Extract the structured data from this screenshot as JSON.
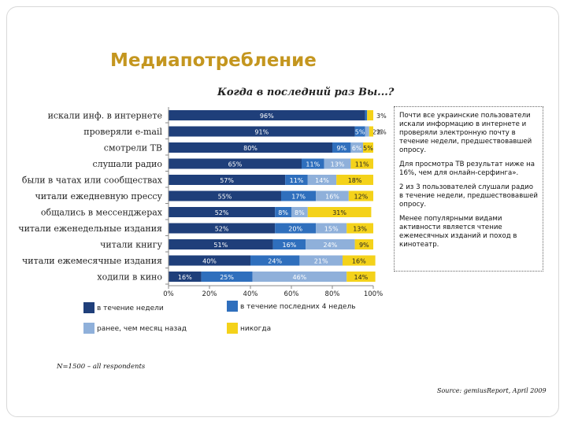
{
  "page": {
    "title": "Медиапотребление",
    "subtitle": "Когда в последний раз Вы...?",
    "sample_note": "N=1500 – all respondents",
    "source": "Source: gemiusReport, April 2009",
    "notes": [
      "Почти все украинские пользователи искали информацию в интернете и проверяли электронную почту в течение недели, предшествовавшей опросу.",
      "Для просмотра ТВ результат ниже на 16%, чем для онлайн-серфинга».",
      "2 из 3 пользователей слушали радио в течение недели, предшествовавшей опросу.",
      "Менее популярными видами активности является чтение ежемесячных изданий и поход в кинотеатр."
    ]
  },
  "chart_data": {
    "type": "bar",
    "orientation": "horizontal",
    "stacked": true,
    "title": "Когда в последний раз Вы...?",
    "categories": [
      "искали инф. в интернете",
      "проверяли e-mail",
      "смотрели ТВ",
      "слушали радио",
      "были в чатах или сообществах",
      "читали ежедневную прессу",
      "общались в мессенджерах",
      "читали еженедельные издания",
      "читали книгу",
      "читали ежемесячные издания",
      "ходили в кино"
    ],
    "series": [
      {
        "name": "в течение недели",
        "color": "#1f3f7a",
        "values": [
          96,
          91,
          80,
          65,
          57,
          55,
          52,
          52,
          51,
          40,
          16
        ]
      },
      {
        "name": "в течение последних 4 недель",
        "color": "#2f6fbd",
        "values": [
          1,
          5,
          9,
          11,
          11,
          17,
          8,
          20,
          16,
          24,
          25
        ]
      },
      {
        "name": "ранее, чем месяц назад",
        "color": "#8fb0da",
        "values": [
          0,
          2,
          6,
          13,
          14,
          16,
          8,
          15,
          24,
          21,
          46
        ]
      },
      {
        "name": "никогда",
        "color": "#f4d21a",
        "values": [
          3,
          2,
          5,
          11,
          18,
          12,
          31,
          13,
          9,
          16,
          14
        ]
      }
    ],
    "labels": [
      [
        "96%",
        "",
        "",
        "3%"
      ],
      [
        "91%",
        "5%",
        "2%",
        "2%"
      ],
      [
        "80%",
        "9%",
        "6%",
        "5%"
      ],
      [
        "65%",
        "11%",
        "13%",
        "11%"
      ],
      [
        "57%",
        "11%",
        "14%",
        "18%"
      ],
      [
        "55%",
        "17%",
        "16%",
        "12%"
      ],
      [
        "52%",
        "8%",
        "8%",
        "31%"
      ],
      [
        "52%",
        "20%",
        "15%",
        "13%"
      ],
      [
        "51%",
        "16%",
        "24%",
        "9%"
      ],
      [
        "40%",
        "24%",
        "21%",
        "16%"
      ],
      [
        "16%",
        "25%",
        "46%",
        "14%"
      ]
    ],
    "xticks": [
      "0%",
      "20%",
      "40%",
      "60%",
      "80%",
      "100%"
    ],
    "xlim": [
      0,
      100
    ],
    "legend_position": "bottom"
  }
}
